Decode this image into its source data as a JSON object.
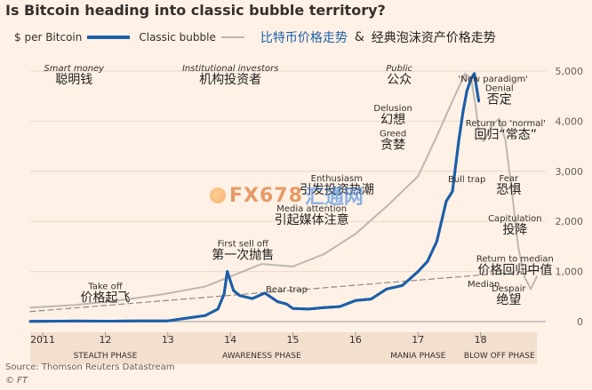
{
  "title": "Is Bitcoin heading into classic bubble territory?",
  "legend": {
    "series1": "$ per Bitcoin",
    "series2": "Classic bubble",
    "zh1": "比特币价格走势",
    "amp": "&",
    "zh2": "经典泡沫资产价格走势"
  },
  "colors": {
    "bitcoin": "#1c5fa8",
    "bubble": "#bdb7b2",
    "median": "#8f8a86",
    "background": "#fff1e5"
  },
  "source": "Source: Thomson Reuters Datastream",
  "credit": "© FT",
  "watermark": {
    "logo_text": "FX678",
    "logo_text2": "汇通网"
  },
  "chart_data": {
    "type": "line",
    "title": "Is Bitcoin heading into classic bubble territory?",
    "ylabel": "",
    "xlabel": "",
    "ylim": [
      0,
      5000
    ],
    "xlim": [
      2010.8,
      2018.9
    ],
    "yticks": [
      0,
      1000,
      2000,
      3000,
      4000,
      5000
    ],
    "ytick_labels": [
      "0",
      "1,000",
      "2,000",
      "3,000",
      "4,000",
      "5,000"
    ],
    "xticks": [
      2011,
      2012,
      2013,
      2014,
      2015,
      2016,
      2017,
      2018
    ],
    "xtick_labels": [
      "2011",
      "12",
      "13",
      "14",
      "15",
      "16",
      "17",
      "18"
    ],
    "grid": true,
    "series": [
      {
        "name": "$ per Bitcoin",
        "x": [
          2010.8,
          2011.5,
          2012.0,
          2012.5,
          2013.0,
          2013.3,
          2013.6,
          2013.8,
          2013.9,
          2013.95,
          2014.05,
          2014.15,
          2014.35,
          2014.55,
          2014.75,
          2014.9,
          2015.0,
          2015.25,
          2015.5,
          2015.75,
          2016.0,
          2016.25,
          2016.5,
          2016.75,
          2017.0,
          2017.15,
          2017.3,
          2017.45,
          2017.55,
          2017.65,
          2017.72,
          2017.78,
          2017.85,
          2017.9,
          2017.97
        ],
        "y": [
          5,
          10,
          8,
          12,
          15,
          70,
          120,
          250,
          550,
          1000,
          620,
          520,
          460,
          570,
          400,
          350,
          260,
          250,
          280,
          300,
          420,
          450,
          650,
          720,
          1000,
          1200,
          1600,
          2400,
          2600,
          3600,
          4200,
          4600,
          4850,
          4950,
          4400
        ]
      },
      {
        "name": "Classic bubble",
        "x": [
          2010.8,
          2011.5,
          2012.2,
          2012.9,
          2013.6,
          2014.0,
          2014.5,
          2015.0,
          2015.5,
          2016.0,
          2016.5,
          2017.0,
          2017.3,
          2017.55,
          2017.75,
          2017.85,
          2017.92,
          2017.98,
          2018.05,
          2018.2,
          2018.3,
          2018.4,
          2018.5,
          2018.6,
          2018.7,
          2018.8,
          2018.9
        ],
        "y": [
          280,
          330,
          420,
          540,
          700,
          900,
          1150,
          1100,
          1350,
          1750,
          2300,
          2900,
          3700,
          4400,
          4950,
          4850,
          4300,
          3700,
          3600,
          3950,
          4050,
          3600,
          2600,
          1500,
          900,
          650,
          900
        ]
      },
      {
        "name": "Median",
        "x": [
          2010.8,
          2018.9
        ],
        "y": [
          200,
          1020
        ]
      }
    ],
    "phases": [
      "STEALTH PHASE",
      "AWARENESS PHASE",
      "MANIA PHASE",
      "BLOW OFF PHASE"
    ],
    "annotations": [
      {
        "x": 2011.5,
        "y": 5000,
        "text": "Smart money",
        "zh": "聪明钱",
        "italic": true
      },
      {
        "x": 2014.0,
        "y": 5000,
        "text": "Institutional investors",
        "zh": "机构投资者",
        "italic": true
      },
      {
        "x": 2016.7,
        "y": 5000,
        "text": "Public",
        "zh": "公众",
        "italic": true
      },
      {
        "x": 2016.6,
        "y": 4200,
        "text": "Delusion",
        "zh": "幻想"
      },
      {
        "x": 2016.6,
        "y": 3700,
        "text": "Greed",
        "zh": "贪婪"
      },
      {
        "x": 2015.7,
        "y": 2800,
        "text": "Enthusiasm",
        "zh": "引发投资热潮"
      },
      {
        "x": 2015.3,
        "y": 2200,
        "text": "Media attention",
        "zh": "引起媒体注意"
      },
      {
        "x": 2014.2,
        "y": 1500,
        "text": "First sell off",
        "zh": "第一次抛售"
      },
      {
        "x": 2012.0,
        "y": 650,
        "text": "Take off",
        "zh": "价格起飞"
      },
      {
        "x": 2014.9,
        "y": 800,
        "text": "Bear trap",
        "zh": ""
      },
      {
        "x": 2018.2,
        "y": 5000,
        "text": "'New paradigm'",
        "zh": ""
      },
      {
        "x": 2018.3,
        "y": 4600,
        "text": "Denial",
        "zh": "否定"
      },
      {
        "x": 2018.4,
        "y": 3900,
        "text": "Return to 'normal'",
        "zh": "回归“常态”"
      },
      {
        "x": 2017.78,
        "y": 3000,
        "text": "Bull trap",
        "zh": ""
      },
      {
        "x": 2018.45,
        "y": 2800,
        "text": "Fear",
        "zh": "恐惧"
      },
      {
        "x": 2018.55,
        "y": 2000,
        "text": "Capitulation",
        "zh": "投降"
      },
      {
        "x": 2018.55,
        "y": 1200,
        "text": "Return to median",
        "zh": "价格回归中值"
      },
      {
        "x": 2018.05,
        "y": 900,
        "text": "Median",
        "zh": ""
      },
      {
        "x": 2018.45,
        "y": 600,
        "text": "Despair",
        "zh": "绝望"
      }
    ]
  }
}
